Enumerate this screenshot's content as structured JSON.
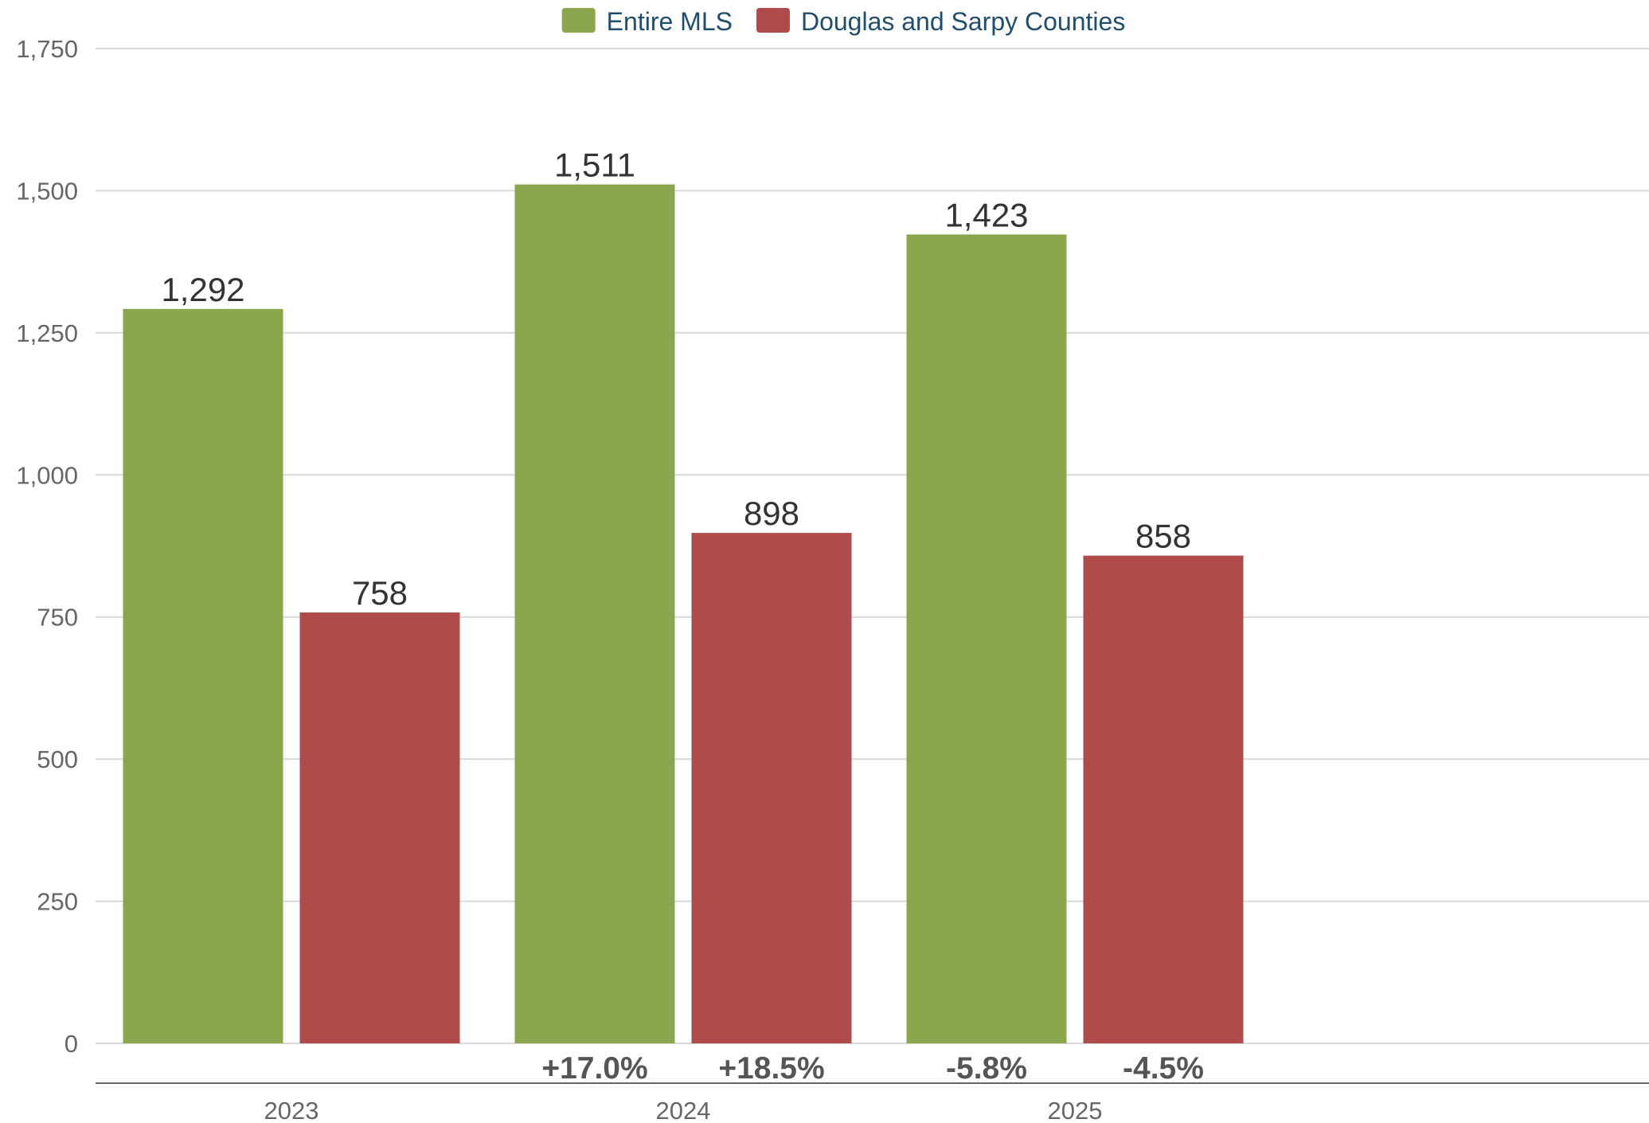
{
  "chart_data": {
    "type": "bar",
    "categories": [
      "2023",
      "2024",
      "2025"
    ],
    "series": [
      {
        "name": "Entire MLS",
        "values": [
          1292,
          1511,
          1423
        ],
        "color": "#8ba74d",
        "changes": [
          "",
          "+17.0%",
          "-5.8%"
        ]
      },
      {
        "name": "Douglas and Sarpy Counties",
        "values": [
          758,
          898,
          858
        ],
        "color": "#b04b4b",
        "changes": [
          "",
          "+18.5%",
          "-4.5%"
        ]
      }
    ],
    "ylim": [
      0,
      1750
    ],
    "yticks": [
      0,
      250,
      500,
      750,
      1000,
      1250,
      1500,
      1750
    ],
    "ytick_labels": [
      "0",
      "250",
      "500",
      "750",
      "1,000",
      "1,250",
      "1,500",
      "1,750"
    ],
    "data_labels": [
      [
        "1,292",
        "1,511",
        "1,423"
      ],
      [
        "758",
        "898",
        "858"
      ]
    ],
    "grid": true,
    "legend_position": "top-center",
    "title": "",
    "xlabel": "",
    "ylabel": ""
  }
}
